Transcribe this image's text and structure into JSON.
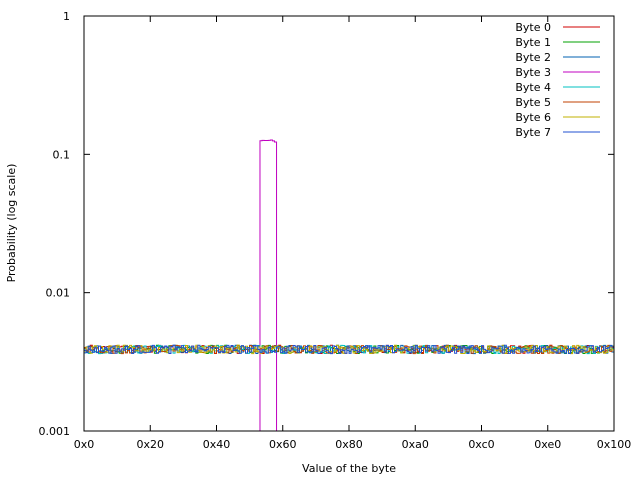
{
  "chart_data": {
    "type": "line",
    "xlabel": "Value of the byte",
    "ylabel": "Probability (log scale)",
    "x_ticks": [
      "0x0",
      "0x20",
      "0x40",
      "0x60",
      "0x80",
      "0xa0",
      "0xc0",
      "0xe0",
      "0x100"
    ],
    "x_tick_values": [
      0,
      32,
      64,
      96,
      128,
      160,
      192,
      224,
      256
    ],
    "xlim": [
      0,
      256
    ],
    "y_ticks": [
      "1",
      "0.1",
      "0.01",
      "0.001"
    ],
    "y_tick_values": [
      1,
      0.1,
      0.01,
      0.001
    ],
    "ylim": [
      0.001,
      1
    ],
    "y_scale": "log",
    "grid": false,
    "legend_position": "top-right",
    "baseline_probability": 0.0039,
    "series": [
      {
        "name": "Byte 0",
        "color": "#d00000",
        "shape": "uniform noise around 0.0039"
      },
      {
        "name": "Byte 1",
        "color": "#00a000",
        "shape": "uniform noise around 0.0039"
      },
      {
        "name": "Byte 2",
        "color": "#0060b0",
        "shape": "uniform noise around 0.0039"
      },
      {
        "name": "Byte 3",
        "color": "#c000c0",
        "shape": "0.125 for x in [0x55, 0x5c], ~0 elsewhere",
        "peak_x_range": [
          85,
          92
        ],
        "peak_value": 0.125
      },
      {
        "name": "Byte 4",
        "color": "#00c0c0",
        "shape": "uniform noise around 0.0039"
      },
      {
        "name": "Byte 5",
        "color": "#c04000",
        "shape": "uniform noise around 0.0039"
      },
      {
        "name": "Byte 6",
        "color": "#c0b000",
        "shape": "uniform noise around 0.0039"
      },
      {
        "name": "Byte 7",
        "color": "#2050d0",
        "shape": "uniform noise around 0.0039"
      }
    ]
  }
}
